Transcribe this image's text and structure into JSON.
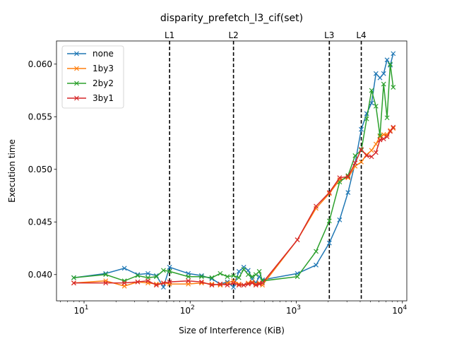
{
  "chart_data": {
    "type": "line",
    "title": "disparity_prefetch_l3_cif(set)",
    "xlabel": "Size of Interference (KiB)",
    "ylabel": "Execution time",
    "xscale": "log",
    "xlim": [
      5.5,
      11000
    ],
    "ylim": [
      0.0375,
      0.0622
    ],
    "x_ticks": [
      {
        "value": 10,
        "base": "10",
        "exp": "1"
      },
      {
        "value": 100,
        "base": "10",
        "exp": "2"
      },
      {
        "value": 1000,
        "base": "10",
        "exp": "3"
      },
      {
        "value": 10000,
        "base": "10",
        "exp": "4"
      }
    ],
    "y_ticks": [
      {
        "value": 0.04,
        "label": "0.040"
      },
      {
        "value": 0.045,
        "label": "0.045"
      },
      {
        "value": 0.05,
        "label": "0.050"
      },
      {
        "value": 0.055,
        "label": "0.055"
      },
      {
        "value": 0.06,
        "label": "0.060"
      }
    ],
    "marker": "x",
    "legend_position": "upper-left",
    "grid": false,
    "vlines": [
      {
        "label": "L1",
        "x": 64
      },
      {
        "label": "L2",
        "x": 256
      },
      {
        "label": "L3",
        "x": 2048
      },
      {
        "label": "L4",
        "x": 4096
      }
    ],
    "series": [
      {
        "name": "none",
        "color": "#1f77b4",
        "points": [
          [
            8,
            0.0397
          ],
          [
            16,
            0.0401
          ],
          [
            24,
            0.0406
          ],
          [
            32,
            0.04
          ],
          [
            40,
            0.0401
          ],
          [
            48,
            0.0399
          ],
          [
            56,
            0.0388
          ],
          [
            64,
            0.0407
          ],
          [
            96,
            0.0401
          ],
          [
            128,
            0.0399
          ],
          [
            160,
            0.0396
          ],
          [
            192,
            0.0391
          ],
          [
            224,
            0.0393
          ],
          [
            256,
            0.0388
          ],
          [
            288,
            0.0403
          ],
          [
            320,
            0.0407
          ],
          [
            352,
            0.0404
          ],
          [
            384,
            0.0396
          ],
          [
            416,
            0.0392
          ],
          [
            448,
            0.0398
          ],
          [
            480,
            0.0395
          ],
          [
            1024,
            0.0401
          ],
          [
            1536,
            0.0409
          ],
          [
            2048,
            0.043
          ],
          [
            2560,
            0.0452
          ],
          [
            3072,
            0.0478
          ],
          [
            3584,
            0.0506
          ],
          [
            4096,
            0.0538
          ],
          [
            4608,
            0.0553
          ],
          [
            5120,
            0.0563
          ],
          [
            5632,
            0.0591
          ],
          [
            6144,
            0.0587
          ],
          [
            6656,
            0.0591
          ],
          [
            7168,
            0.0604
          ],
          [
            7680,
            0.0599
          ],
          [
            8192,
            0.061
          ]
        ]
      },
      {
        "name": "1by3",
        "color": "#ff7f0e",
        "points": [
          [
            8,
            0.0392
          ],
          [
            16,
            0.0394
          ],
          [
            24,
            0.0389
          ],
          [
            32,
            0.0393
          ],
          [
            40,
            0.0392
          ],
          [
            48,
            0.0391
          ],
          [
            56,
            0.0392
          ],
          [
            64,
            0.0391
          ],
          [
            96,
            0.0391
          ],
          [
            128,
            0.0392
          ],
          [
            160,
            0.0391
          ],
          [
            192,
            0.039
          ],
          [
            224,
            0.0392
          ],
          [
            256,
            0.0394
          ],
          [
            288,
            0.0391
          ],
          [
            320,
            0.039
          ],
          [
            352,
            0.0392
          ],
          [
            384,
            0.0393
          ],
          [
            416,
            0.0391
          ],
          [
            448,
            0.0392
          ],
          [
            480,
            0.039
          ],
          [
            1024,
            0.0433
          ],
          [
            1536,
            0.0463
          ],
          [
            2048,
            0.0477
          ],
          [
            2560,
            0.049
          ],
          [
            3072,
            0.0492
          ],
          [
            3584,
            0.0503
          ],
          [
            4096,
            0.0507
          ],
          [
            4608,
            0.0514
          ],
          [
            5120,
            0.0518
          ],
          [
            5632,
            0.0524
          ],
          [
            6144,
            0.0531
          ],
          [
            6656,
            0.0533
          ],
          [
            7168,
            0.0533
          ],
          [
            7680,
            0.0537
          ],
          [
            8192,
            0.0539
          ]
        ]
      },
      {
        "name": "2by2",
        "color": "#2ca02c",
        "points": [
          [
            8,
            0.0397
          ],
          [
            16,
            0.04
          ],
          [
            24,
            0.0394
          ],
          [
            32,
            0.0399
          ],
          [
            40,
            0.0397
          ],
          [
            48,
            0.0398
          ],
          [
            56,
            0.0404
          ],
          [
            64,
            0.0403
          ],
          [
            96,
            0.0398
          ],
          [
            128,
            0.0398
          ],
          [
            160,
            0.0397
          ],
          [
            192,
            0.0401
          ],
          [
            224,
            0.0398
          ],
          [
            256,
            0.0399
          ],
          [
            288,
            0.0397
          ],
          [
            320,
            0.0405
          ],
          [
            352,
            0.04
          ],
          [
            384,
            0.0398
          ],
          [
            416,
            0.04
          ],
          [
            448,
            0.0403
          ],
          [
            480,
            0.0394
          ],
          [
            1024,
            0.0398
          ],
          [
            1536,
            0.0422
          ],
          [
            2048,
            0.0451
          ],
          [
            2560,
            0.0488
          ],
          [
            3072,
            0.0494
          ],
          [
            3584,
            0.0513
          ],
          [
            4096,
            0.0518
          ],
          [
            4608,
            0.0548
          ],
          [
            5120,
            0.0575
          ],
          [
            5632,
            0.056
          ],
          [
            6144,
            0.0532
          ],
          [
            6656,
            0.0581
          ],
          [
            7168,
            0.0549
          ],
          [
            7680,
            0.06
          ],
          [
            8192,
            0.0578
          ]
        ]
      },
      {
        "name": "3by1",
        "color": "#d62728",
        "points": [
          [
            8,
            0.0392
          ],
          [
            16,
            0.0392
          ],
          [
            24,
            0.0392
          ],
          [
            32,
            0.0393
          ],
          [
            40,
            0.0394
          ],
          [
            48,
            0.039
          ],
          [
            56,
            0.0392
          ],
          [
            64,
            0.0393
          ],
          [
            96,
            0.0394
          ],
          [
            128,
            0.0393
          ],
          [
            160,
            0.039
          ],
          [
            192,
            0.0391
          ],
          [
            224,
            0.039
          ],
          [
            256,
            0.0392
          ],
          [
            288,
            0.039
          ],
          [
            320,
            0.039
          ],
          [
            352,
            0.0391
          ],
          [
            384,
            0.0392
          ],
          [
            416,
            0.039
          ],
          [
            448,
            0.0391
          ],
          [
            480,
            0.0392
          ],
          [
            1024,
            0.0433
          ],
          [
            1536,
            0.0465
          ],
          [
            2048,
            0.0478
          ],
          [
            2560,
            0.0492
          ],
          [
            3072,
            0.0493
          ],
          [
            3584,
            0.0506
          ],
          [
            4096,
            0.0519
          ],
          [
            4608,
            0.0513
          ],
          [
            5120,
            0.0512
          ],
          [
            5632,
            0.0516
          ],
          [
            6144,
            0.0528
          ],
          [
            6656,
            0.0529
          ],
          [
            7168,
            0.0531
          ],
          [
            7680,
            0.0536
          ],
          [
            8192,
            0.054
          ]
        ]
      }
    ]
  }
}
